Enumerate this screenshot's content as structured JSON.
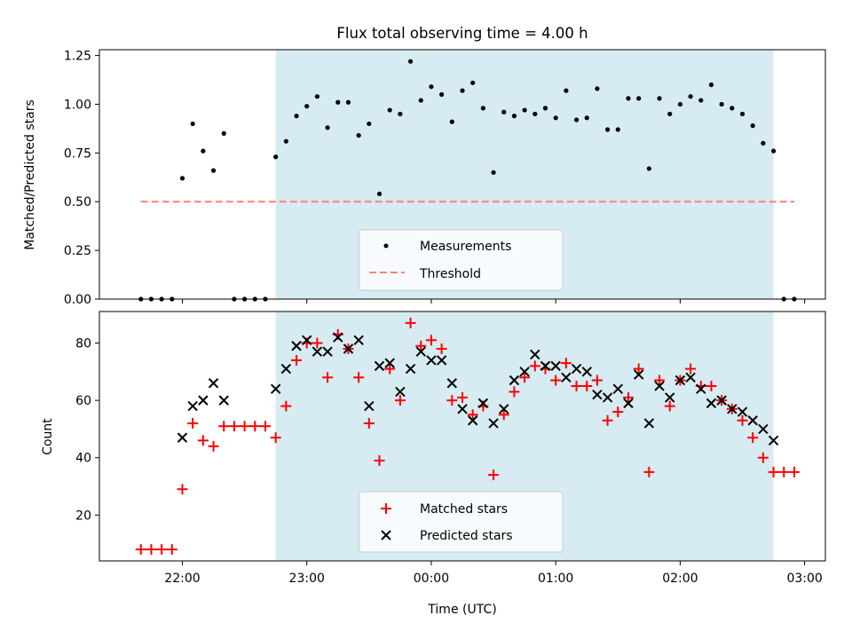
{
  "chart_data": [
    {
      "type": "scatter",
      "title": "Flux total observing time = 4.00 h",
      "xlabel": "",
      "ylabel": "Matched/Predicted stars",
      "ylim": [
        0.0,
        1.28
      ],
      "yticks": [
        "0.00",
        "0.25",
        "0.50",
        "0.75",
        "1.00",
        "1.25"
      ],
      "ytick_values": [
        0.0,
        0.25,
        0.5,
        0.75,
        1.0,
        1.25
      ],
      "xlim": [
        "21:20",
        "03:10"
      ],
      "xtick_values": [
        "22:00",
        "23:00",
        "00:00",
        "01:00",
        "02:00",
        "03:00"
      ],
      "shaded_interval": [
        "22:45",
        "02:45"
      ],
      "shade_color": "#add8e6",
      "threshold": {
        "name": "Threshold",
        "value": 0.5,
        "x_range": [
          "21:40",
          "02:55"
        ],
        "color": "#ff7f7f"
      },
      "legend": {
        "position": "lower center",
        "entries": [
          "Measurements",
          "Threshold"
        ]
      },
      "series": [
        {
          "name": "Measurements",
          "color": "#000000",
          "x": [
            "21:40",
            "21:45",
            "21:50",
            "21:55",
            "22:00",
            "22:05",
            "22:10",
            "22:15",
            "22:20",
            "22:25",
            "22:30",
            "22:35",
            "22:40",
            "22:45",
            "22:50",
            "22:55",
            "23:00",
            "23:05",
            "23:10",
            "23:15",
            "23:20",
            "23:25",
            "23:30",
            "23:35",
            "23:40",
            "23:45",
            "23:50",
            "23:55",
            "00:00",
            "00:05",
            "00:10",
            "00:15",
            "00:20",
            "00:25",
            "00:30",
            "00:35",
            "00:40",
            "00:45",
            "00:50",
            "00:55",
            "01:00",
            "01:05",
            "01:10",
            "01:15",
            "01:20",
            "01:25",
            "01:30",
            "01:35",
            "01:40",
            "01:45",
            "01:50",
            "01:55",
            "02:00",
            "02:05",
            "02:10",
            "02:15",
            "02:20",
            "02:25",
            "02:30",
            "02:35",
            "02:40",
            "02:45",
            "02:50",
            "02:55"
          ],
          "values": [
            0,
            0,
            0,
            0,
            0.62,
            0.9,
            0.76,
            0.66,
            0.85,
            0,
            0,
            0,
            0,
            0.73,
            0.81,
            0.94,
            0.99,
            1.04,
            0.88,
            1.01,
            1.01,
            0.84,
            0.9,
            0.54,
            0.97,
            0.95,
            1.22,
            1.02,
            1.09,
            1.05,
            0.91,
            1.07,
            1.11,
            0.98,
            0.65,
            0.96,
            0.94,
            0.97,
            0.95,
            0.98,
            0.93,
            1.07,
            0.92,
            0.93,
            1.08,
            0.87,
            0.87,
            1.03,
            1.03,
            0.67,
            1.03,
            0.95,
            1.0,
            1.04,
            1.02,
            1.1,
            1.0,
            0.98,
            0.95,
            0.89,
            0.8,
            0.76,
            0,
            0
          ]
        }
      ]
    },
    {
      "type": "scatter",
      "title": "",
      "xlabel": "Time (UTC)",
      "ylabel": "Count",
      "ylim": [
        4,
        91
      ],
      "yticks": [
        "20",
        "40",
        "60",
        "80"
      ],
      "ytick_values": [
        20,
        40,
        60,
        80
      ],
      "xlim": [
        "21:20",
        "03:10"
      ],
      "xticks": [
        "22:00",
        "23:00",
        "00:00",
        "01:00",
        "02:00",
        "03:00"
      ],
      "xtick_values": [
        "22:00",
        "23:00",
        "00:00",
        "01:00",
        "02:00",
        "03:00"
      ],
      "shaded_interval": [
        "22:45",
        "02:45"
      ],
      "shade_color": "#add8e6",
      "legend": {
        "position": "lower center",
        "entries": [
          "Matched stars",
          "Predicted stars"
        ]
      },
      "series": [
        {
          "name": "Matched stars",
          "marker": "+",
          "color": "#ff0000",
          "x": [
            "21:40",
            "21:45",
            "21:50",
            "21:55",
            "22:00",
            "22:05",
            "22:10",
            "22:15",
            "22:20",
            "22:25",
            "22:30",
            "22:35",
            "22:40",
            "22:45",
            "22:50",
            "22:55",
            "23:00",
            "23:05",
            "23:10",
            "23:15",
            "23:20",
            "23:25",
            "23:30",
            "23:35",
            "23:40",
            "23:45",
            "23:50",
            "23:55",
            "00:00",
            "00:05",
            "00:10",
            "00:15",
            "00:20",
            "00:25",
            "00:30",
            "00:35",
            "00:40",
            "00:45",
            "00:50",
            "00:55",
            "01:00",
            "01:05",
            "01:10",
            "01:15",
            "01:20",
            "01:25",
            "01:30",
            "01:35",
            "01:40",
            "01:45",
            "01:50",
            "01:55",
            "02:00",
            "02:05",
            "02:10",
            "02:15",
            "02:20",
            "02:25",
            "02:30",
            "02:35",
            "02:40",
            "02:45",
            "02:50",
            "02:55"
          ],
          "values": [
            8,
            8,
            8,
            8,
            29,
            52,
            46,
            44,
            51,
            51,
            51,
            51,
            51,
            47,
            58,
            74,
            80,
            80,
            68,
            83,
            78,
            68,
            52,
            39,
            71,
            60,
            87,
            79,
            81,
            78,
            60,
            61,
            55,
            58,
            34,
            55,
            63,
            68,
            72,
            71,
            67,
            73,
            65,
            65,
            67,
            53,
            56,
            61,
            71,
            35,
            67,
            58,
            67,
            71,
            65,
            65,
            60,
            57,
            53,
            47,
            40,
            35,
            35,
            35
          ]
        },
        {
          "name": "Predicted stars",
          "marker": "x",
          "color": "#000000",
          "x": [
            "22:00",
            "22:05",
            "22:10",
            "22:15",
            "22:20",
            "22:45",
            "22:50",
            "22:55",
            "23:00",
            "23:05",
            "23:10",
            "23:15",
            "23:20",
            "23:25",
            "23:30",
            "23:35",
            "23:40",
            "23:45",
            "23:50",
            "23:55",
            "00:00",
            "00:05",
            "00:10",
            "00:15",
            "00:20",
            "00:25",
            "00:30",
            "00:35",
            "00:40",
            "00:45",
            "00:50",
            "00:55",
            "01:00",
            "01:05",
            "01:10",
            "01:15",
            "01:20",
            "01:25",
            "01:30",
            "01:35",
            "01:40",
            "01:45",
            "01:50",
            "01:55",
            "02:00",
            "02:05",
            "02:10",
            "02:15",
            "02:20",
            "02:25",
            "02:30",
            "02:35",
            "02:40",
            "02:45"
          ],
          "values": [
            47,
            58,
            60,
            66,
            60,
            64,
            71,
            79,
            81,
            77,
            77,
            82,
            78,
            81,
            58,
            72,
            73,
            63,
            71,
            77,
            74,
            74,
            66,
            57,
            53,
            59,
            52,
            57,
            67,
            70,
            76,
            72,
            72,
            68,
            71,
            70,
            62,
            61,
            64,
            59,
            69,
            52,
            65,
            61,
            67,
            68,
            64,
            59,
            60,
            57,
            56,
            53,
            50,
            46
          ]
        }
      ]
    }
  ]
}
